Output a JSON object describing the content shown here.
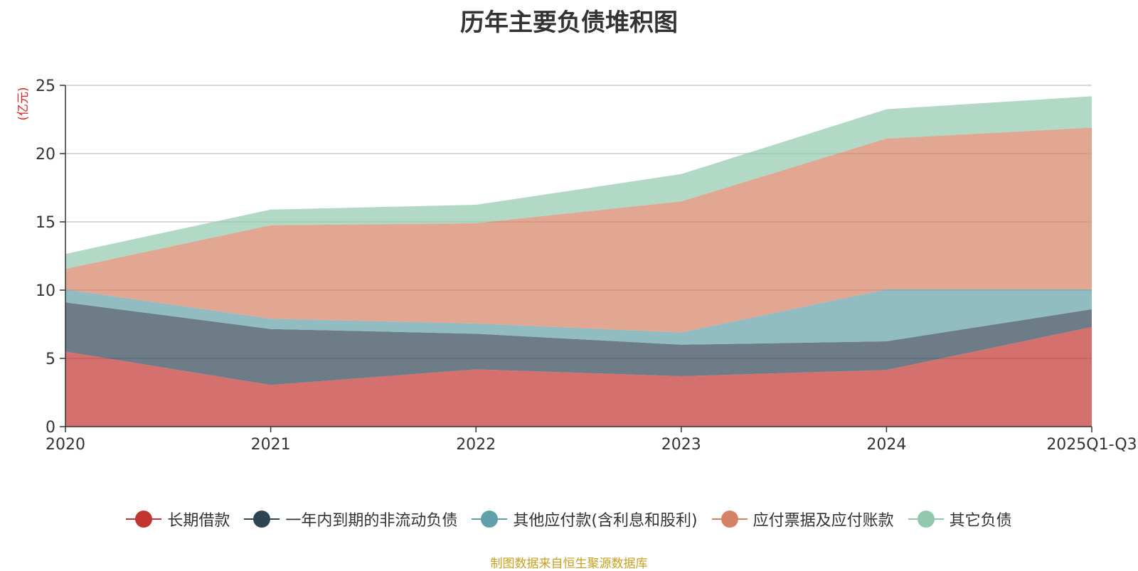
{
  "chart_data": {
    "type": "area",
    "stacked": true,
    "title": "历年主要负债堆积图",
    "ylabel": "(亿元)",
    "xlabel": "",
    "ylim": [
      0,
      25
    ],
    "yticks": [
      0,
      5,
      10,
      15,
      20,
      25
    ],
    "categories": [
      "2020",
      "2021",
      "2022",
      "2023",
      "2024",
      "2025Q1-Q3"
    ],
    "grid": true,
    "legend_position": "bottom",
    "series": [
      {
        "name": "长期借款",
        "color": "#c23531",
        "values": [
          5.5,
          3.05,
          4.2,
          3.7,
          4.15,
          7.3
        ]
      },
      {
        "name": "一年内到期的非流动负债",
        "color": "#2f4554",
        "values": [
          3.6,
          4.1,
          2.6,
          2.3,
          2.1,
          1.3
        ]
      },
      {
        "name": "其他应付款(含利息和股利)",
        "color": "#61a0a8",
        "values": [
          0.95,
          0.75,
          0.75,
          0.9,
          3.8,
          1.45
        ]
      },
      {
        "name": "应付票据及应付账款",
        "color": "#d48265",
        "values": [
          1.5,
          6.85,
          7.35,
          9.6,
          11.05,
          11.85
        ]
      },
      {
        "name": "其它负债",
        "color": "#91c7ae",
        "values": [
          1.1,
          1.15,
          1.35,
          2.0,
          2.15,
          2.3
        ]
      }
    ],
    "source_note": "制图数据来自恒生聚源数据库"
  }
}
